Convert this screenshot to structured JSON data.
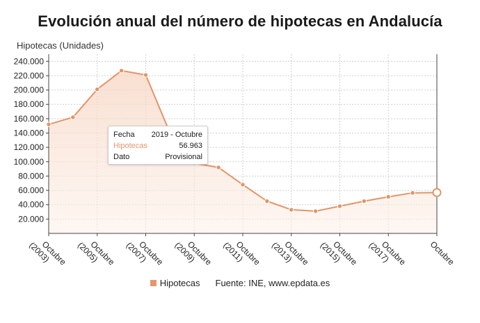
{
  "chart_data": {
    "type": "area",
    "title": "Evolución anual del número de hipotecas en Andalucía",
    "ylabel": "Hipotecas (Unidades)",
    "xlabel": "",
    "ylim": [
      0,
      250000
    ],
    "yticks": [
      20000,
      40000,
      60000,
      80000,
      100000,
      120000,
      140000,
      160000,
      180000,
      200000,
      220000,
      240000
    ],
    "ytick_labels": [
      "20.000",
      "40.000",
      "60.000",
      "80.000",
      "100.000",
      "120.000",
      "140.000",
      "160.000",
      "180.000",
      "200.000",
      "220.000",
      "240.000"
    ],
    "x_tick_labels": [
      {
        "index": 0,
        "line1": "Octubre",
        "line2": "(2003)"
      },
      {
        "index": 2,
        "line1": "Octubre",
        "line2": "(2005)"
      },
      {
        "index": 4,
        "line1": "Octubre",
        "line2": "(2007)"
      },
      {
        "index": 6,
        "line1": "Octubre",
        "line2": "(2009)"
      },
      {
        "index": 8,
        "line1": "Octubre",
        "line2": "(2011)"
      },
      {
        "index": 10,
        "line1": "Octubre",
        "line2": "(2013)"
      },
      {
        "index": 12,
        "line1": "Octubre",
        "line2": "(2015)"
      },
      {
        "index": 14,
        "line1": "Octubre",
        "line2": "(2017)"
      },
      {
        "index": 16,
        "line1": "Octubre",
        "line2": ""
      }
    ],
    "grid": true,
    "legend_position": "bottom",
    "series": [
      {
        "name": "Hipotecas",
        "color": "#e8956a",
        "values": [
          152000,
          162000,
          201000,
          227000,
          221000,
          140000,
          98000,
          92000,
          68000,
          45000,
          33000,
          31000,
          38000,
          45000,
          51000,
          56500,
          56963
        ]
      }
    ],
    "highlight_index": 16
  },
  "tooltip": {
    "fecha_label": "Fecha",
    "fecha_value": "2019 - Octubre",
    "series_label": "Hipotecas",
    "series_value": "56.963",
    "dato_label": "Dato",
    "dato_value": "Provisional"
  },
  "legend": {
    "series_label": "Hipotecas",
    "source": "Fuente: INE, www.epdata.es"
  }
}
